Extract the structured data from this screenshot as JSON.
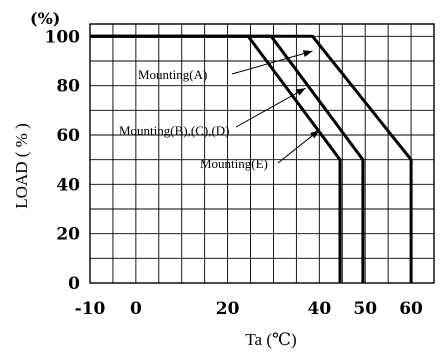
{
  "chart_data": {
    "type": "line",
    "unit_label": "(%)",
    "xlabel": "Ta (℃)",
    "ylabel": "LOAD ( % )",
    "xlim": [
      -10,
      65
    ],
    "ylim": [
      0,
      105
    ],
    "x_tick_labels": [
      "-10",
      "0",
      "20",
      "40",
      "50",
      "60"
    ],
    "x_tick_values": [
      -10,
      0,
      20,
      40,
      50,
      60
    ],
    "y_tick_labels": [
      "0",
      "20",
      "40",
      "60",
      "80",
      "100"
    ],
    "y_tick_values": [
      0,
      20,
      40,
      60,
      80,
      100
    ],
    "x_grid": [
      -10,
      -5,
      0,
      5,
      10,
      15,
      20,
      25,
      30,
      35,
      40,
      45,
      50,
      55,
      60,
      65
    ],
    "y_grid": [
      0,
      10,
      20,
      30,
      40,
      50,
      60,
      70,
      80,
      90,
      100,
      105
    ],
    "grid": true,
    "series": [
      {
        "name": "Mounting(A)",
        "x": [
          -10,
          38.5,
          60,
          60
        ],
        "y": [
          100,
          100,
          50,
          0
        ]
      },
      {
        "name": "Mounting(B),(C),(D)",
        "x": [
          -10,
          29.5,
          49.5,
          49.5
        ],
        "y": [
          100,
          100,
          50,
          0
        ]
      },
      {
        "name": "Mounting(E)",
        "x": [
          -10,
          24.5,
          44.5,
          44.5
        ],
        "y": [
          100,
          100,
          50,
          0
        ]
      }
    ],
    "annotations": [
      {
        "text": "Mounting(A)",
        "series": 0,
        "at": [
          38.5,
          94
        ]
      },
      {
        "text": "Mounting(B),(C),(D)",
        "series": 1,
        "at": [
          37,
          79
        ]
      },
      {
        "text": "Mounting(E)",
        "series": 2,
        "at": [
          40,
          62
        ]
      }
    ]
  }
}
